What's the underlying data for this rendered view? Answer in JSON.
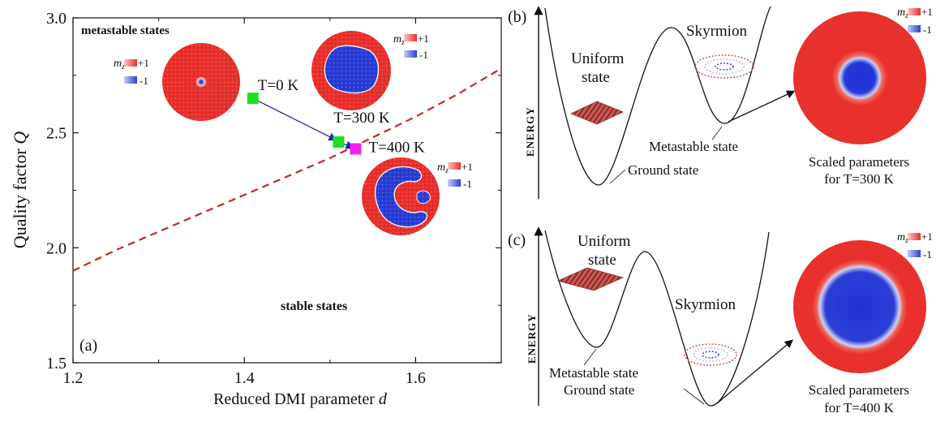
{
  "chart_data": {
    "type": "scatter",
    "panel_label": "(a)",
    "xlabel": "Reduced DMI parameter",
    "xlabel_var": "d",
    "ylabel": "Quality factor",
    "ylabel_var": "Q",
    "xlim": [
      1.2,
      1.7
    ],
    "ylim": [
      1.5,
      3.0
    ],
    "x_ticks": [
      "1.2",
      "1.4",
      "1.6"
    ],
    "y_ticks": [
      "1.5",
      "2.0",
      "2.5",
      "3.0"
    ],
    "region_labels": {
      "upper": "metastable states",
      "lower": "stable states"
    },
    "boundary": {
      "style": "dashed",
      "color": "#c0282a",
      "x": [
        1.2,
        1.25,
        1.3,
        1.35,
        1.4,
        1.45,
        1.5,
        1.55,
        1.6,
        1.65,
        1.7
      ],
      "y": [
        1.9,
        1.99,
        2.07,
        2.15,
        2.23,
        2.31,
        2.39,
        2.48,
        2.57,
        2.67,
        2.78
      ]
    },
    "points": [
      {
        "label": "T=0 K",
        "x": 1.41,
        "y": 2.65,
        "color": "#22dd22"
      },
      {
        "label": "T=300 K",
        "x": 1.51,
        "y": 2.46,
        "color": "#22dd22"
      },
      {
        "label": "T=400 K",
        "x": 1.53,
        "y": 2.43,
        "color": "#ee22ee"
      }
    ],
    "path_color": "#1a2aa8"
  },
  "legend": {
    "mz": "m",
    "mz_sub": "z",
    "plus": "+1",
    "minus": "-1"
  },
  "panel_b": {
    "label": "(b)",
    "y_axis": "ENERGY",
    "uniform_line1": "Uniform",
    "uniform_line2": "state",
    "skyrmion": "Skyrmion",
    "metastable": "Metastable state",
    "ground": "Ground state",
    "scaled_line1": "Scaled parameters",
    "scaled_line2": "for T=300 K"
  },
  "panel_c": {
    "label": "(c)",
    "y_axis": "ENERGY",
    "uniform_line1": "Uniform",
    "uniform_line2": "state",
    "skyrmion": "Skyrmion",
    "metastable": "Metastable state",
    "ground": "Ground state",
    "scaled_line1": "Scaled parameters",
    "scaled_line2": "for T=400 K"
  },
  "colors": {
    "red": "#e8302c",
    "blue": "#2a3ed6",
    "white": "#f4f4f8"
  }
}
